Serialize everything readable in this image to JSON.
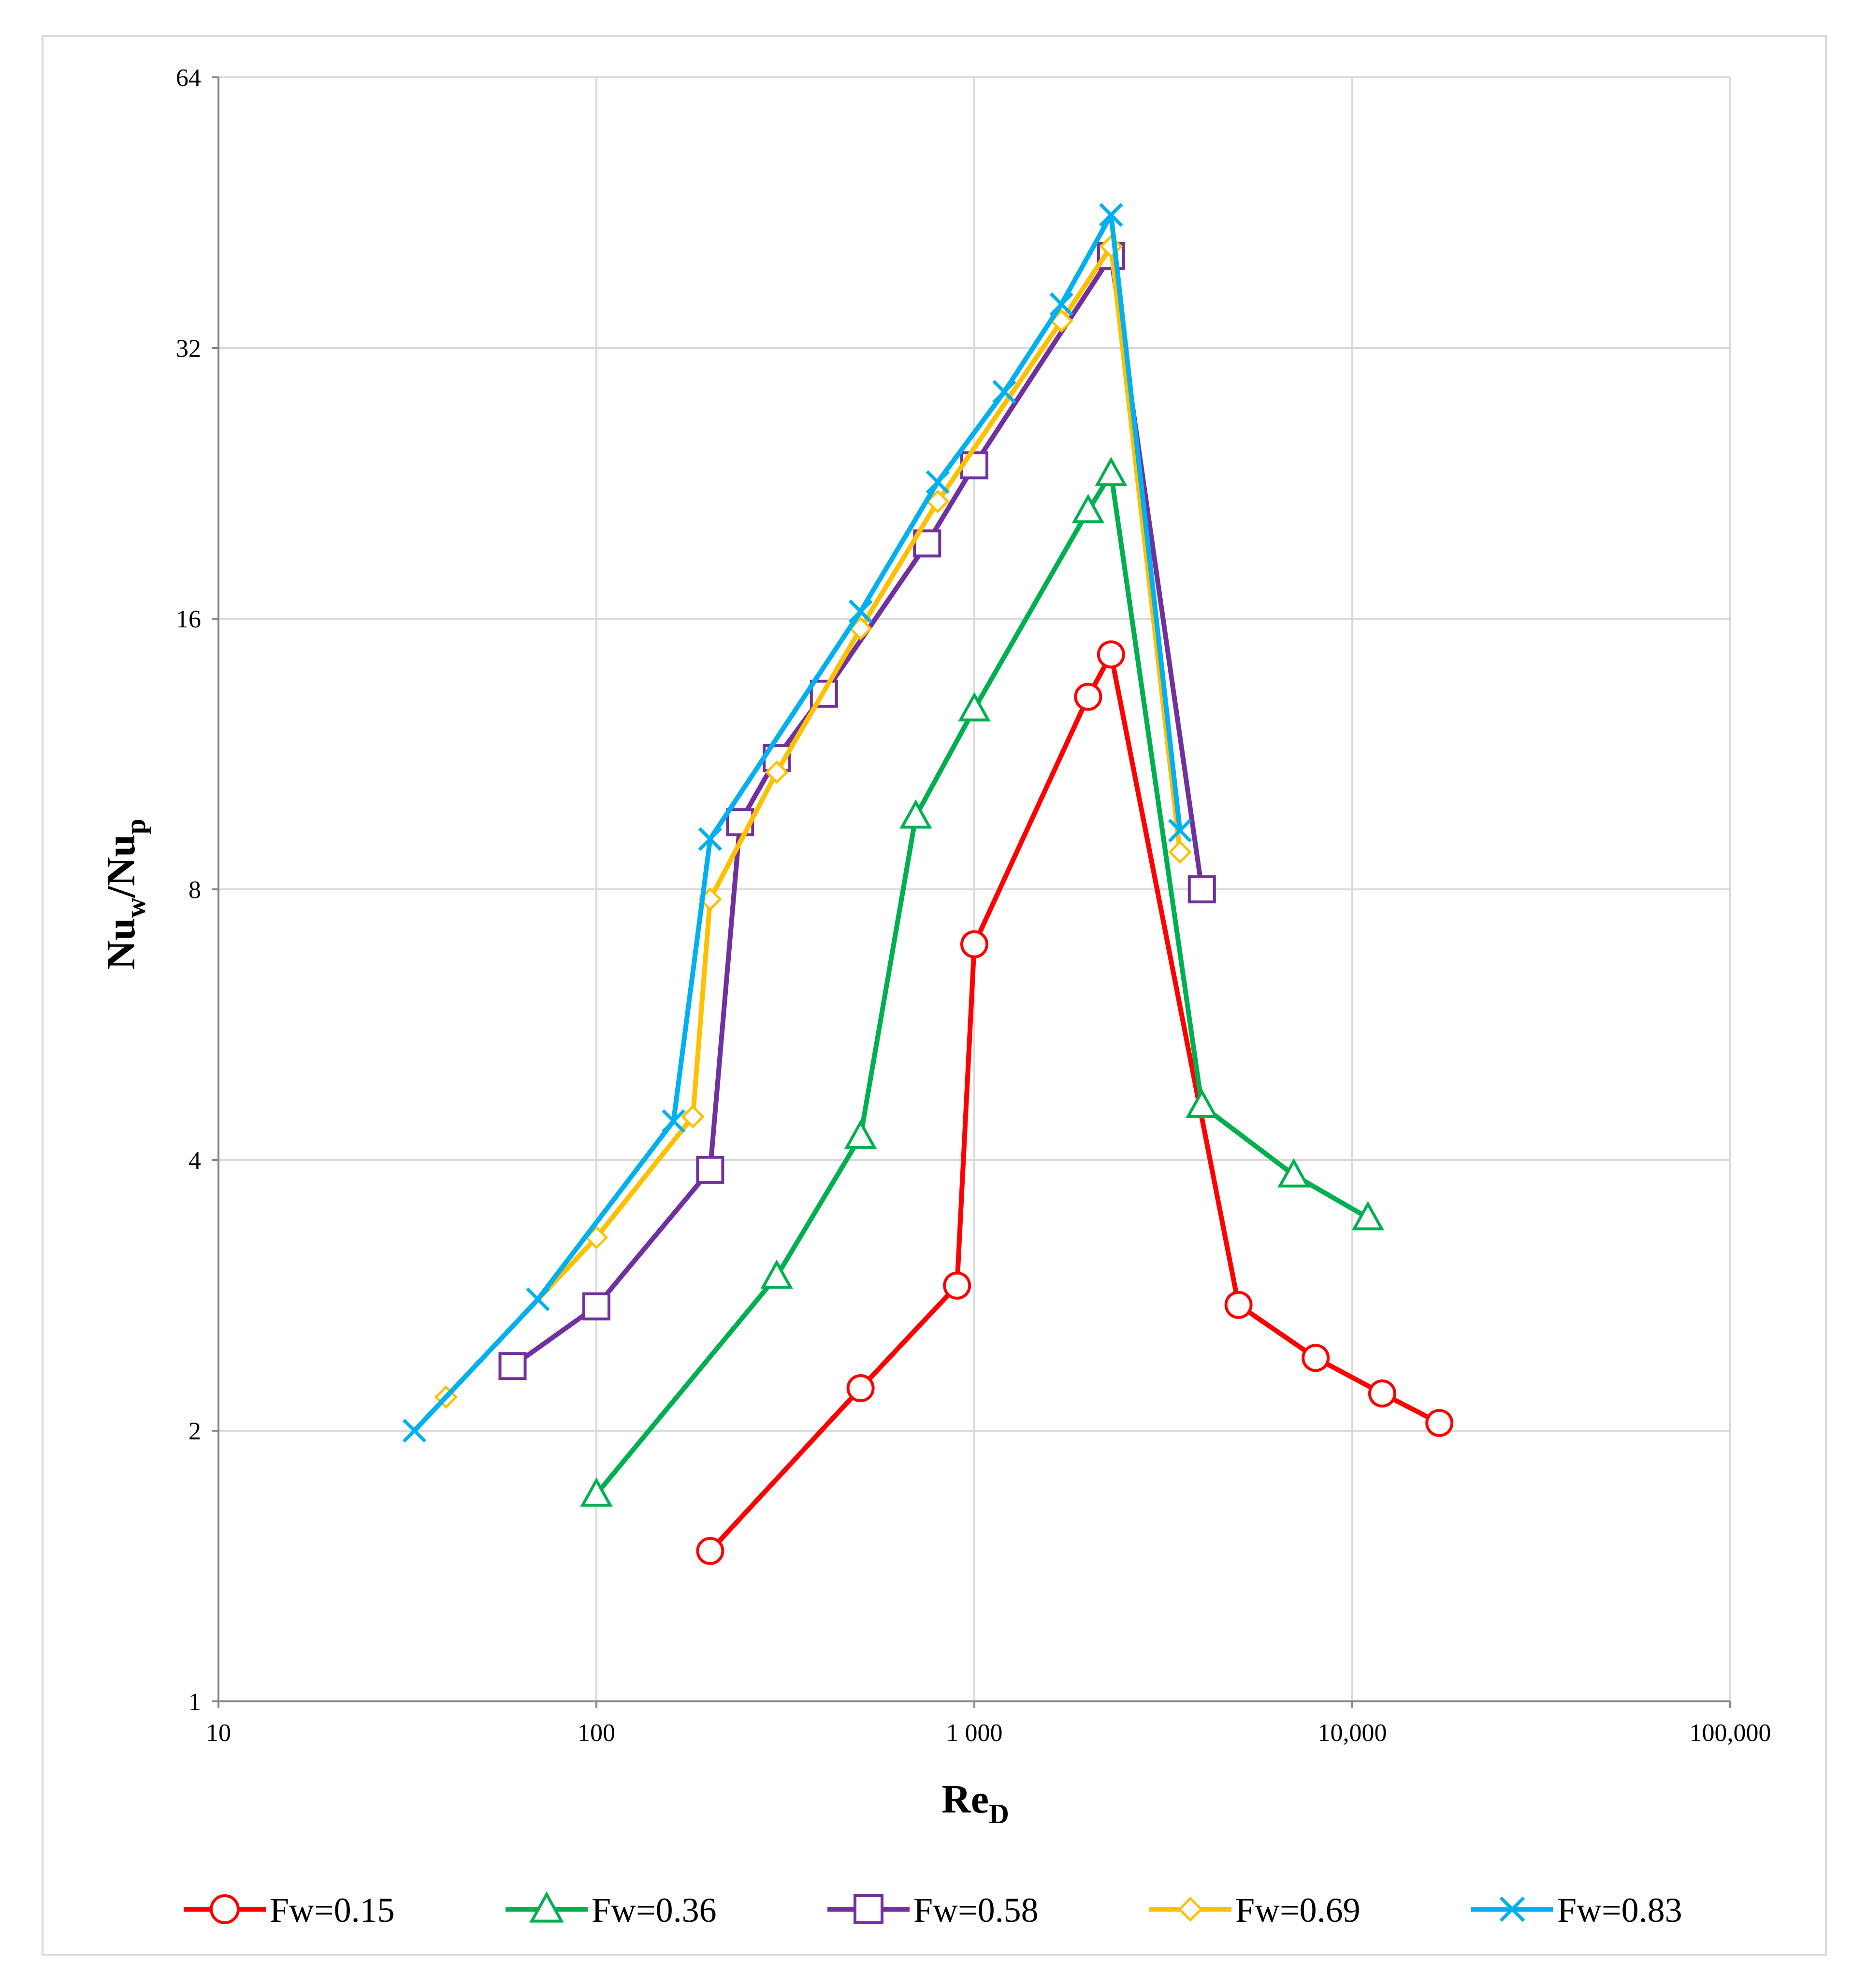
{
  "chart_data": {
    "type": "line",
    "title": "",
    "xlabel": {
      "main": "Re",
      "sub": "D"
    },
    "ylabel": {
      "main1": "Nu",
      "sub1": "w",
      "sep": "/",
      "main2": "Nu",
      "sub2": "p"
    },
    "x_scale": "log",
    "y_scale": "log2",
    "xlim": [
      10,
      100000
    ],
    "ylim": [
      1,
      64
    ],
    "x_ticks": [
      10,
      100,
      1000,
      10000,
      100000
    ],
    "x_tick_labels": [
      "10",
      "100",
      "1 000",
      "10,000",
      "100,000"
    ],
    "y_ticks": [
      1,
      2,
      4,
      8,
      16,
      32,
      64
    ],
    "y_tick_labels": [
      "1",
      "2",
      "4",
      "8",
      "16",
      "32",
      "64"
    ],
    "grid": true,
    "legend_position": "bottom",
    "series": [
      {
        "name": "Fw=0.15",
        "color": "#ff0000",
        "marker": "circle",
        "x": [
          200,
          500,
          900,
          1000,
          2000,
          2300,
          5000,
          8000,
          12000,
          17000
        ],
        "y": [
          1.47,
          2.23,
          2.9,
          6.95,
          13.1,
          14.6,
          2.76,
          2.41,
          2.2,
          2.04
        ]
      },
      {
        "name": "Fw=0.36",
        "color": "#00b050",
        "marker": "triangle",
        "x": [
          100,
          300,
          500,
          700,
          1000,
          2000,
          2300,
          4000,
          7000,
          11000
        ],
        "y": [
          1.7,
          2.97,
          4.25,
          9.65,
          12.7,
          21.1,
          23.2,
          4.6,
          3.85,
          3.45
        ]
      },
      {
        "name": "Fw=0.58",
        "color": "#7030a0",
        "marker": "square",
        "x": [
          60,
          100,
          200,
          240,
          300,
          400,
          750,
          1000,
          2300,
          4000
        ],
        "y": [
          2.36,
          2.75,
          3.9,
          9.5,
          11.2,
          13.2,
          19.4,
          23.7,
          40.5,
          8.0
        ]
      },
      {
        "name": "Fw=0.69",
        "color": "#ffc000",
        "marker": "diamond",
        "x": [
          40,
          100,
          180,
          200,
          300,
          500,
          800,
          1700,
          2300,
          3500
        ],
        "y": [
          2.18,
          3.28,
          4.47,
          7.8,
          10.8,
          15.6,
          21.6,
          34.3,
          41.5,
          8.8
        ]
      },
      {
        "name": "Fw=0.83",
        "color": "#00b0f0",
        "marker": "x",
        "x": [
          33,
          70,
          160,
          200,
          500,
          800,
          1200,
          1700,
          2300,
          3500
        ],
        "y": [
          2.0,
          2.8,
          4.42,
          9.1,
          16.3,
          22.7,
          28.6,
          35.8,
          45.0,
          9.3
        ]
      }
    ]
  }
}
